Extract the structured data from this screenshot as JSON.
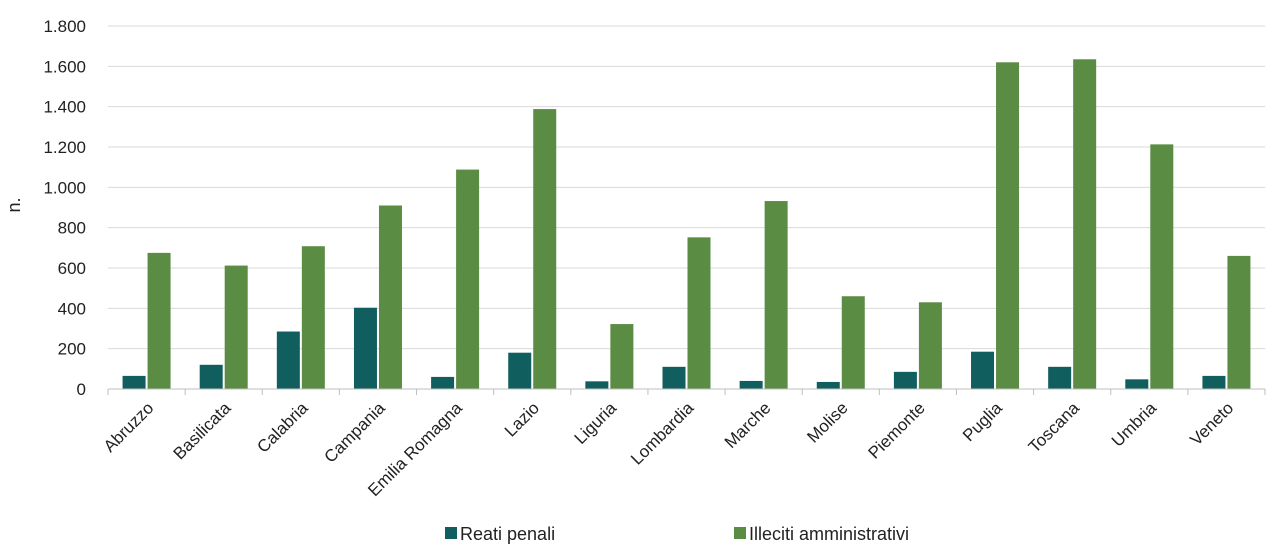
{
  "chart_data": {
    "type": "bar",
    "title": "",
    "xlabel": "",
    "ylabel": "n.",
    "ylim": [
      0,
      1800
    ],
    "yticks": [
      0,
      200,
      400,
      600,
      800,
      1000,
      1200,
      1400,
      1600,
      1800
    ],
    "ytick_labels": [
      "0",
      "200",
      "400",
      "600",
      "800",
      "1.000",
      "1.200",
      "1.400",
      "1.600",
      "1.800"
    ],
    "grid": true,
    "legend_position": "bottom",
    "categories": [
      "Abruzzo",
      "Basilicata",
      "Calabria",
      "Campania",
      "Emilia Romagna",
      "Lazio",
      "Liguria",
      "Lombardia",
      "Marche",
      "Molise",
      "Piemonte",
      "Puglia",
      "Toscana",
      "Umbria",
      "Veneto"
    ],
    "series": [
      {
        "name": "Reati penali",
        "color": "#115e5e",
        "values": [
          65,
          120,
          285,
          403,
          60,
          180,
          38,
          110,
          40,
          35,
          85,
          185,
          110,
          48,
          65
        ]
      },
      {
        "name": "Illeciti amministrativi",
        "color": "#5b8c44",
        "values": [
          675,
          612,
          708,
          910,
          1088,
          1388,
          322,
          752,
          932,
          460,
          430,
          1620,
          1635,
          1213,
          660
        ]
      }
    ]
  }
}
